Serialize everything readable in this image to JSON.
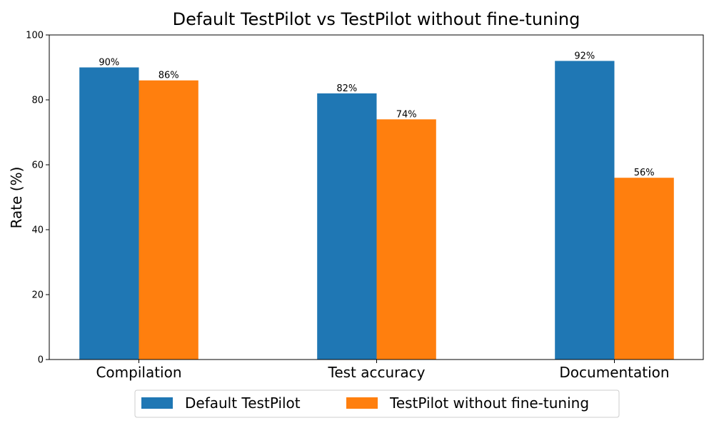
{
  "chart_data": {
    "type": "bar",
    "title": "Default TestPilot vs TestPilot without fine-tuning",
    "xlabel": "",
    "ylabel": "Rate (%)",
    "categories": [
      "Compilation",
      "Test accuracy",
      "Documentation"
    ],
    "series": [
      {
        "name": "Default TestPilot",
        "values": [
          90,
          82,
          92
        ],
        "color": "#1f77b4",
        "labels": [
          "90%",
          "82%",
          "92%"
        ]
      },
      {
        "name": "TestPilot without fine-tuning",
        "values": [
          86,
          74,
          56
        ],
        "color": "#ff7f0e",
        "labels": [
          "86%",
          "74%",
          "56%"
        ]
      }
    ],
    "ylim": [
      0,
      100
    ],
    "yticks": [
      0,
      20,
      40,
      60,
      80,
      100
    ],
    "grid": false,
    "legend_position": "bottom-center"
  }
}
